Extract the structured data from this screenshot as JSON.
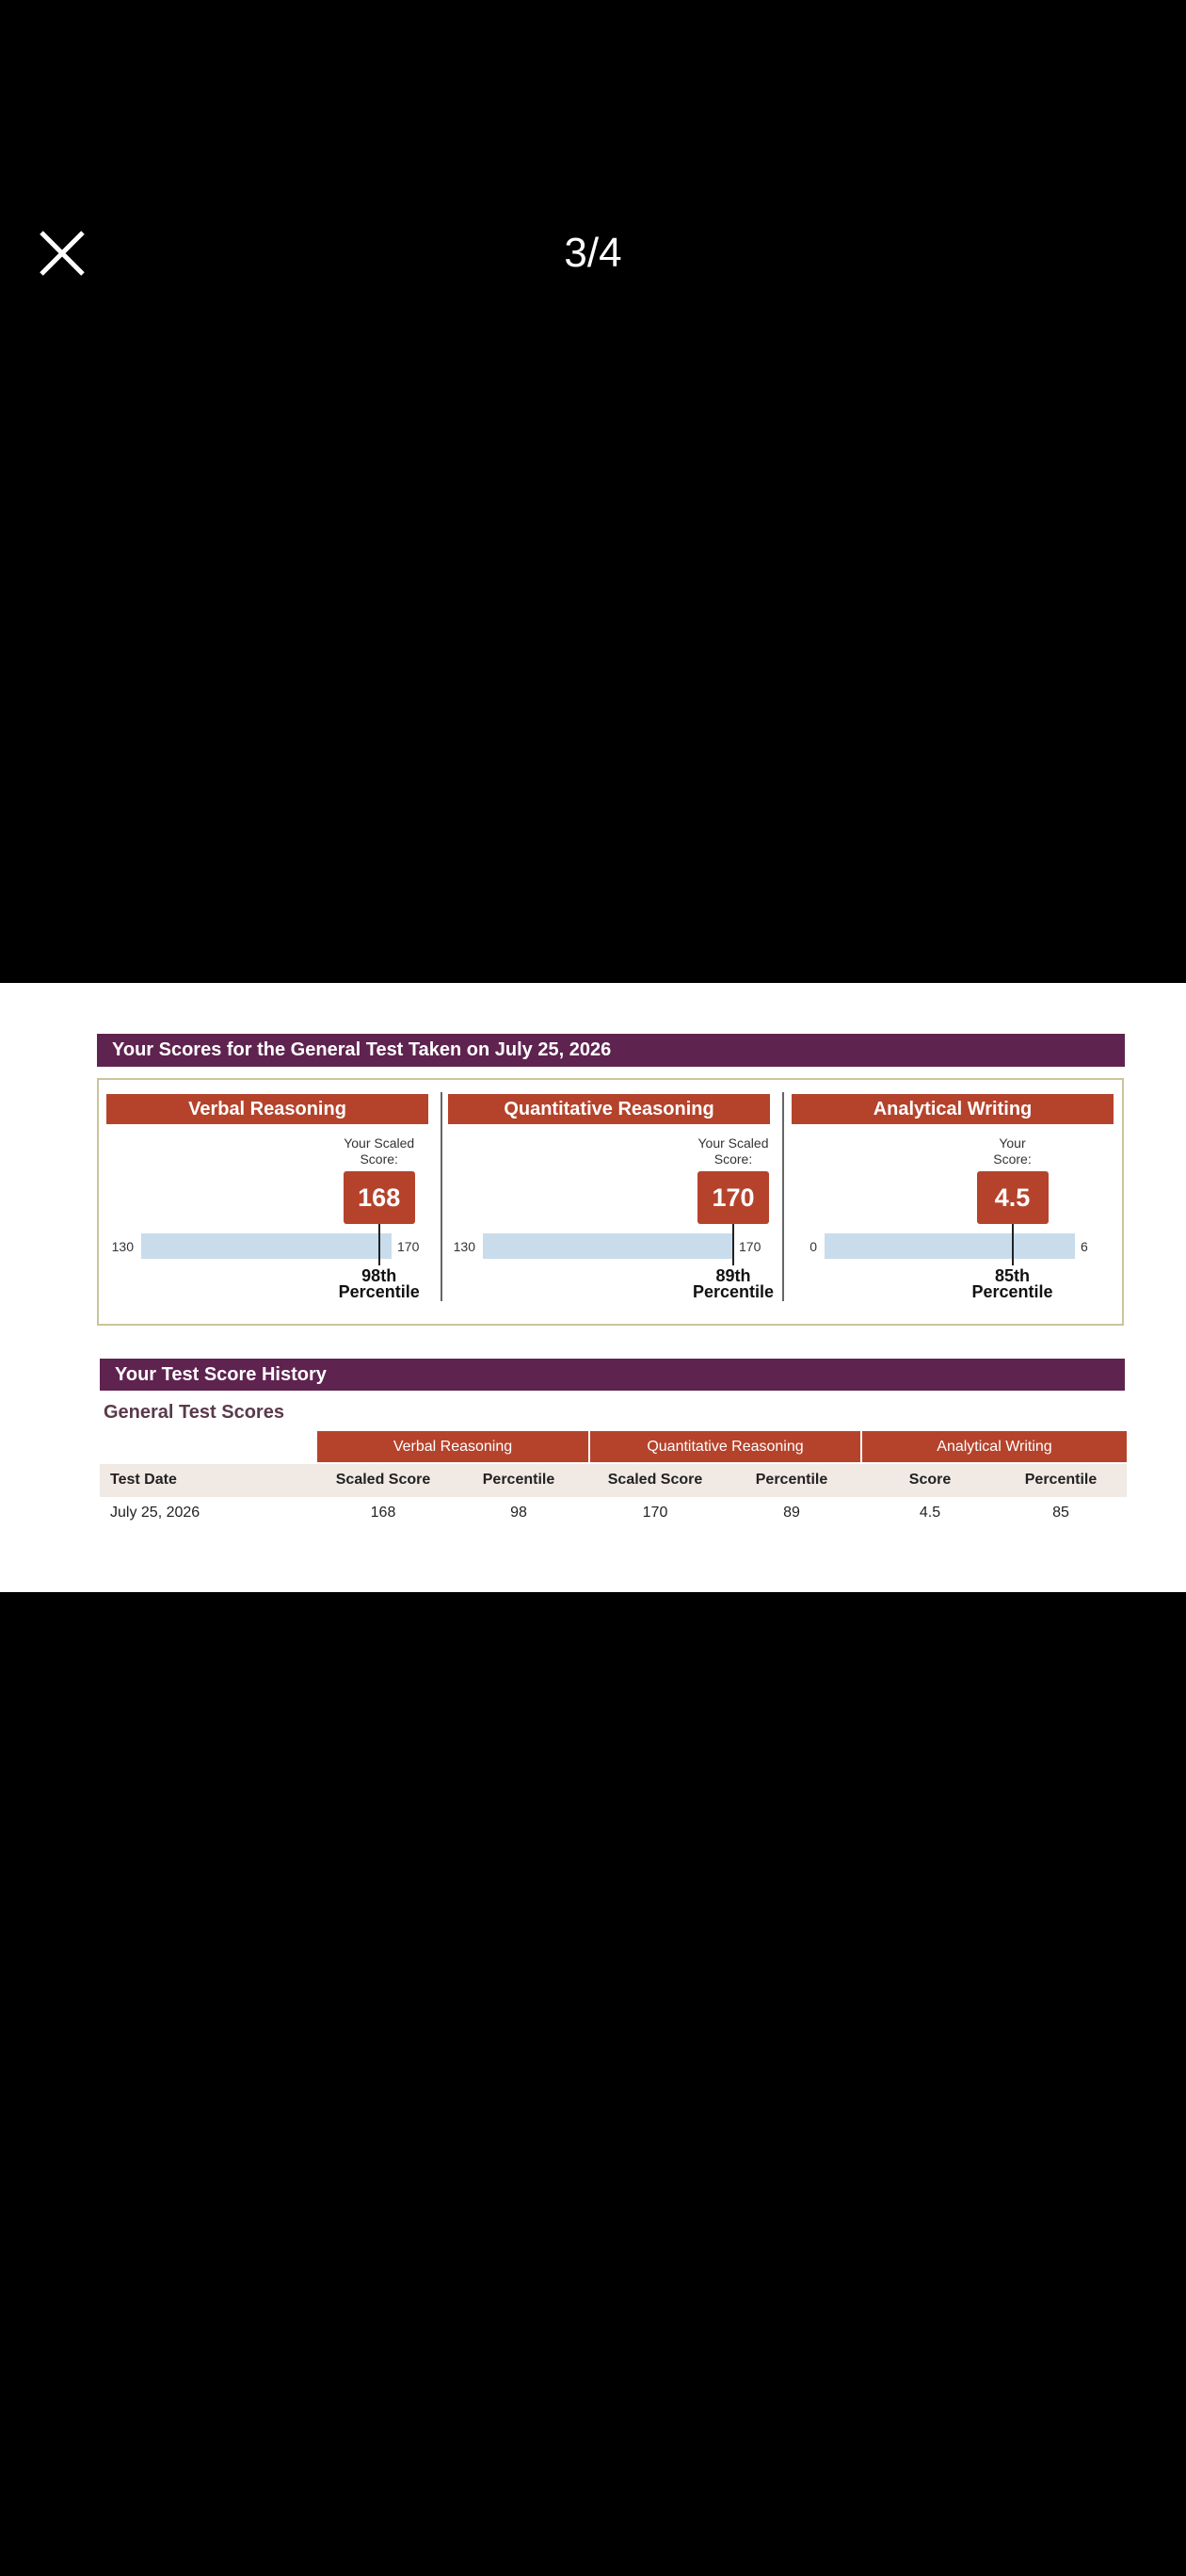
{
  "viewer": {
    "counter": "3/4"
  },
  "report": {
    "title": "Your Scores for the General Test Taken on July 25, 2026",
    "sections": [
      {
        "name": "Verbal Reasoning",
        "score_label": [
          "Your Scaled",
          "Score:"
        ],
        "score": 168,
        "min": 130,
        "max": 170,
        "percentile": "98th",
        "percentile_caption": "Percentile"
      },
      {
        "name": "Quantitative Reasoning",
        "score_label": [
          "Your Scaled",
          "Score:"
        ],
        "score": 170,
        "min": 130,
        "max": 170,
        "percentile": "89th",
        "percentile_caption": "Percentile"
      },
      {
        "name": "Analytical Writing",
        "score_label": [
          "Your",
          "Score:"
        ],
        "score": 4.5,
        "min": 0,
        "max": 6,
        "percentile": "85th",
        "percentile_caption": "Percentile"
      }
    ]
  },
  "history": {
    "title": "Your Test Score History",
    "subtitle": "General Test Scores",
    "groups": [
      "Verbal Reasoning",
      "Quantitative Reasoning",
      "Analytical Writing"
    ],
    "columns": [
      "Test Date",
      "Scaled Score",
      "Percentile",
      "Scaled Score",
      "Percentile",
      "Score",
      "Percentile"
    ],
    "rows": [
      [
        "July 25, 2026",
        168,
        98,
        170,
        89,
        4.5,
        85
      ]
    ]
  }
}
